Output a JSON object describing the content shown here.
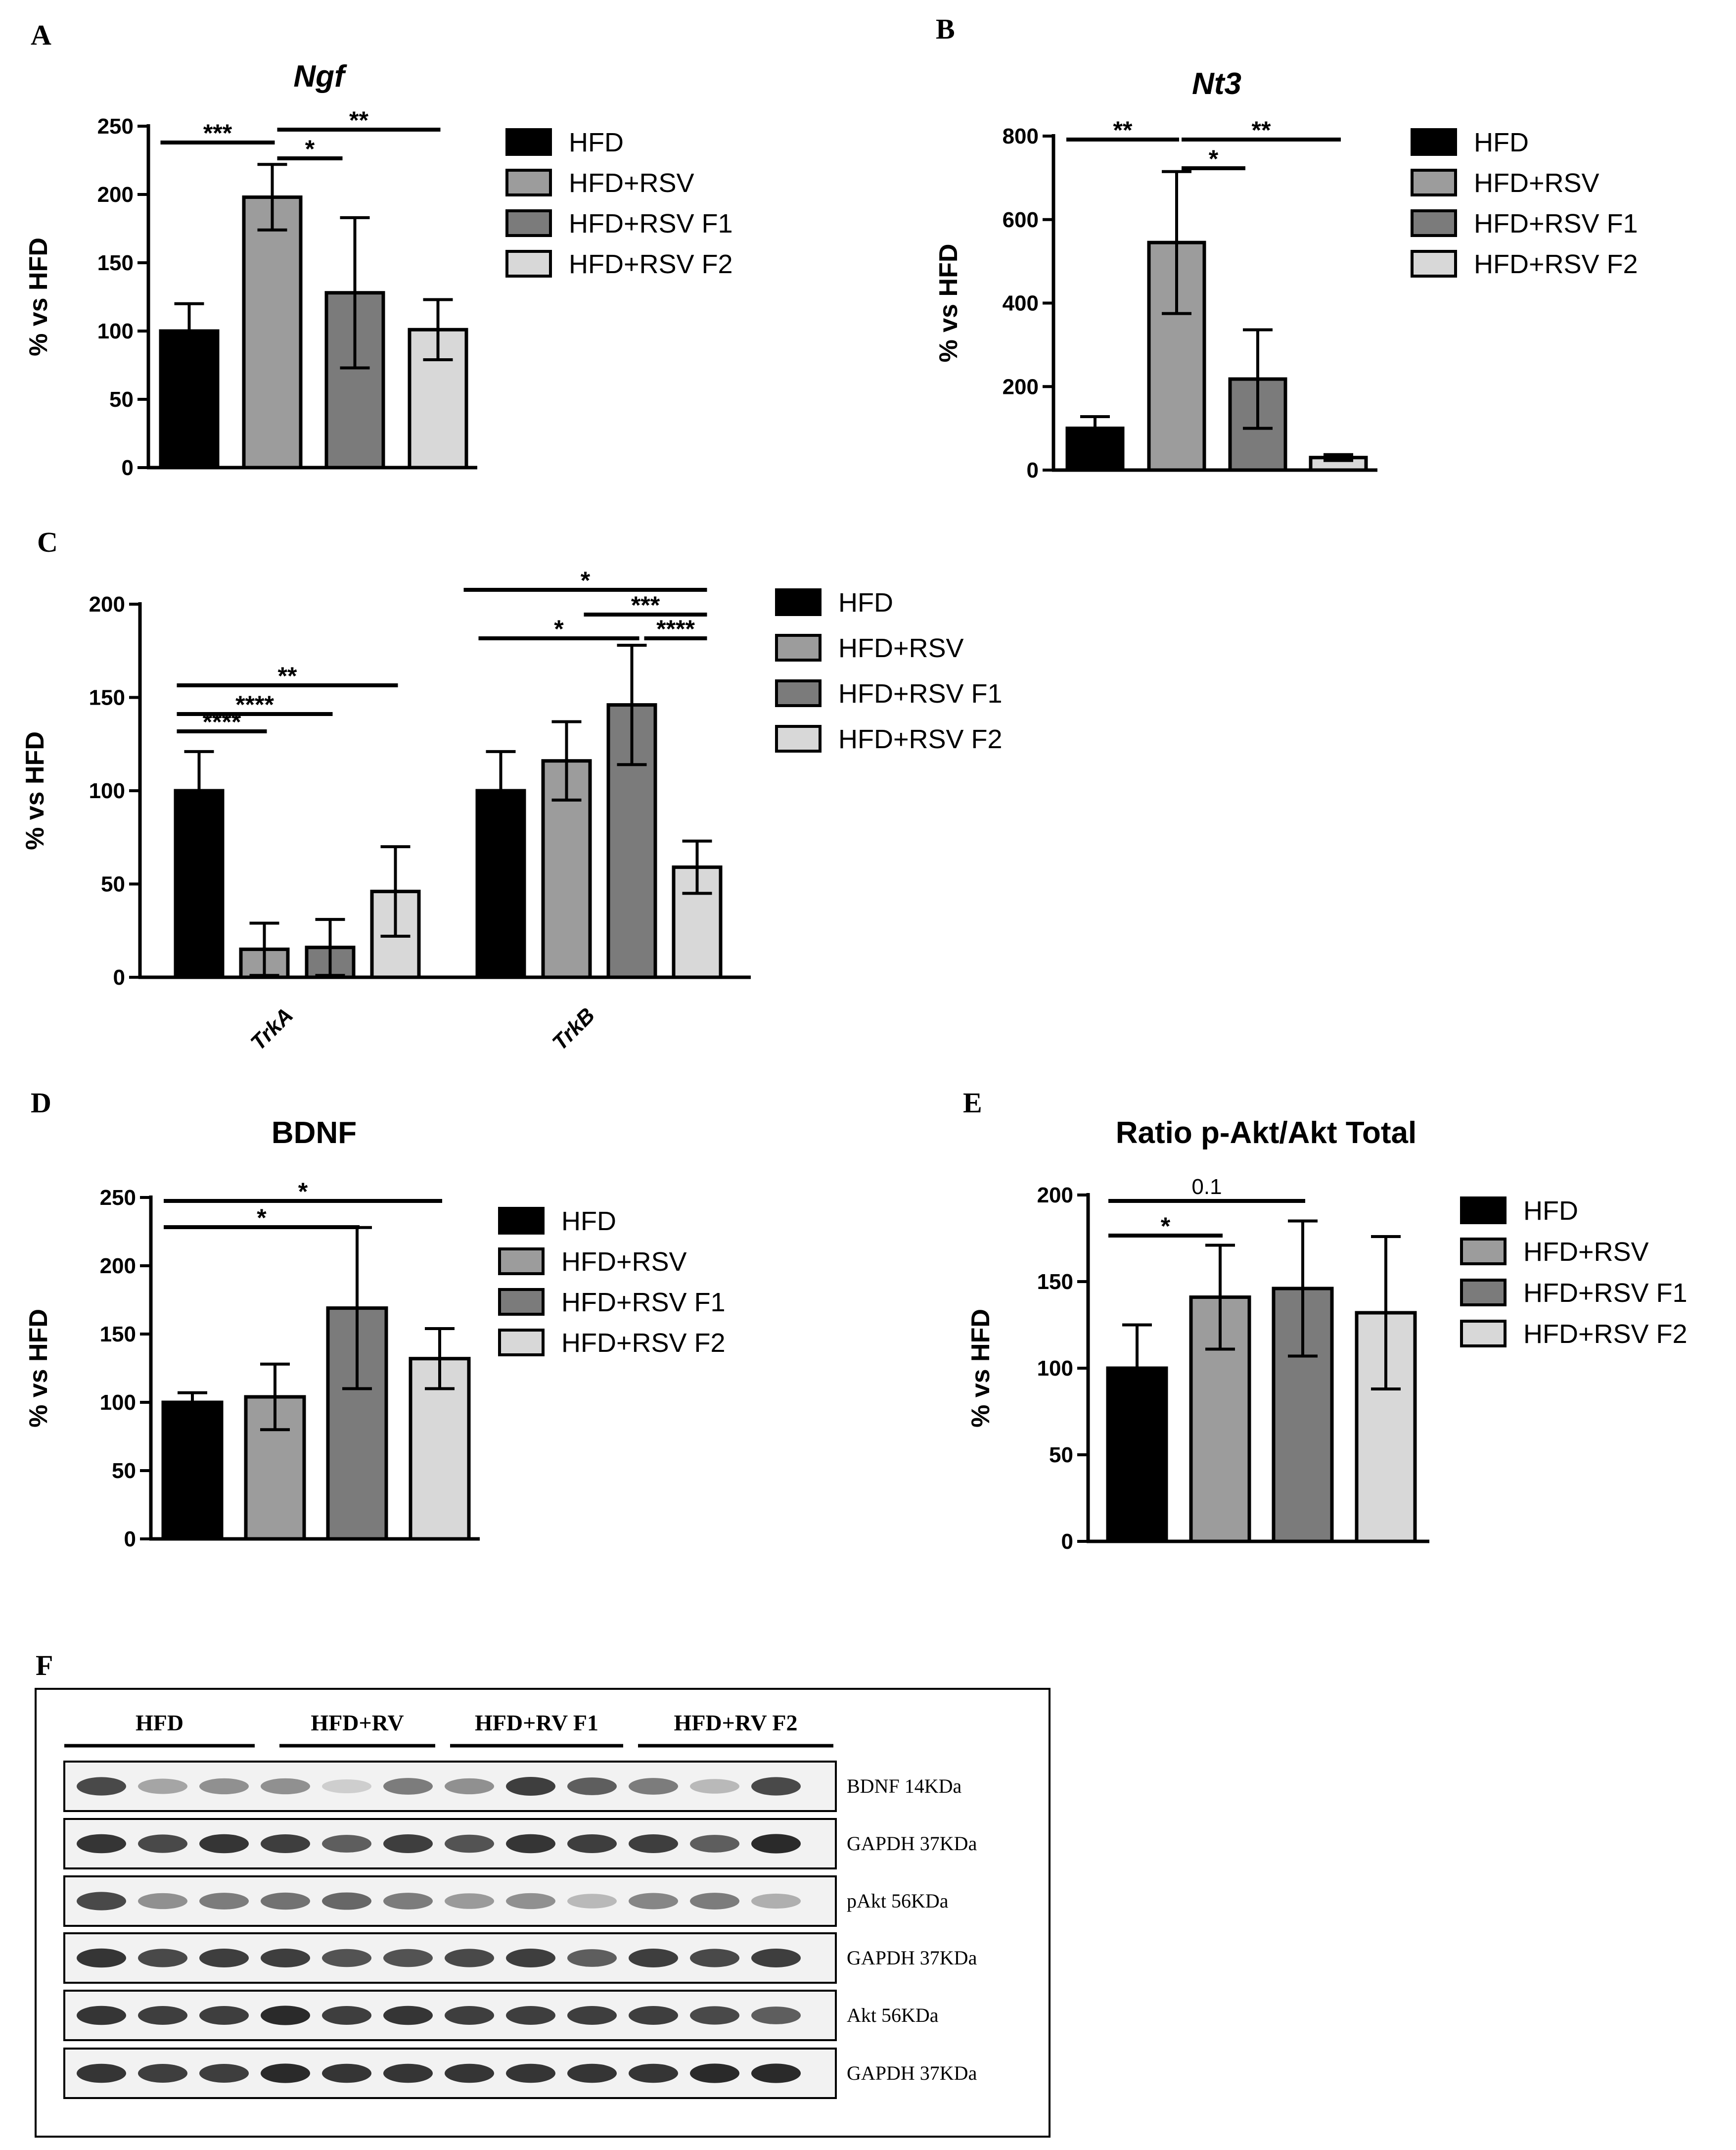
{
  "colors": {
    "HFD": "#000000",
    "HFD+RSV": "#9c9c9c",
    "HFD+RSV F1": "#7b7b7b",
    "HFD+RSV F2": "#d8d8d8"
  },
  "legend": [
    "HFD",
    "HFD+RSV",
    "HFD+RSV F1",
    "HFD+RSV F2"
  ],
  "chart_data": [
    {
      "panel": "A",
      "type": "bar",
      "title": "Ngf",
      "title_italic": true,
      "ylabel": "% vs HFD",
      "ylim": [
        0,
        250
      ],
      "yticks": [
        0,
        50,
        100,
        150,
        200,
        250
      ],
      "categories": [
        "HFD",
        "HFD+RSV",
        "HFD+RSV F1",
        "HFD+RSV F2"
      ],
      "values": [
        100,
        198,
        128,
        101
      ],
      "errors": [
        20,
        24,
        55,
        22
      ],
      "significance": [
        {
          "from": 0,
          "to": 1,
          "label": "***"
        },
        {
          "from": 1,
          "to": 2,
          "label": "*"
        },
        {
          "from": 1,
          "to": 3,
          "label": "**"
        }
      ]
    },
    {
      "panel": "B",
      "type": "bar",
      "title": "Nt3",
      "title_italic": true,
      "ylabel": "% vs HFD",
      "ylim": [
        0,
        800
      ],
      "yticks": [
        0,
        200,
        400,
        600,
        800
      ],
      "categories": [
        "HFD",
        "HFD+RSV",
        "HFD+RSV F1",
        "HFD+RSV F2"
      ],
      "values": [
        100,
        545,
        218,
        30
      ],
      "errors": [
        28,
        170,
        118,
        7
      ],
      "significance": [
        {
          "from": 0,
          "to": 1,
          "label": "**"
        },
        {
          "from": 1,
          "to": 2,
          "label": "*"
        },
        {
          "from": 1,
          "to": 3,
          "label": "**"
        }
      ]
    },
    {
      "panel": "C",
      "type": "bar",
      "title": "",
      "ylabel": "% vs HFD",
      "ylim": [
        0,
        200
      ],
      "yticks": [
        0,
        50,
        100,
        150,
        200
      ],
      "categories": [
        "TrkA",
        "TrkB"
      ],
      "series": [
        {
          "name": "HFD",
          "values": [
            100,
            100
          ],
          "errors": [
            21,
            21
          ]
        },
        {
          "name": "HFD+RSV",
          "values": [
            15,
            116
          ],
          "errors": [
            14,
            21
          ]
        },
        {
          "name": "HFD+RSV F1",
          "values": [
            16,
            146
          ],
          "errors": [
            15,
            32
          ]
        },
        {
          "name": "HFD+RSV F2",
          "values": [
            46,
            59
          ],
          "errors": [
            24,
            14
          ]
        }
      ],
      "significance": [
        {
          "group": 0,
          "from": 0,
          "to": 1,
          "label": "****"
        },
        {
          "group": 0,
          "from": 0,
          "to": 2,
          "label": "****"
        },
        {
          "group": 0,
          "from": 0,
          "to": 3,
          "label": "**"
        },
        {
          "group": 1,
          "from": 0,
          "to": 2,
          "label": "*"
        },
        {
          "group": 1,
          "from": 2,
          "to": 3,
          "label": "****"
        },
        {
          "group": 1,
          "from": 1,
          "to": 3,
          "label": "***"
        },
        {
          "group": 1,
          "from": 0,
          "to": 3,
          "label": "*"
        }
      ]
    },
    {
      "panel": "D",
      "type": "bar",
      "title": "BDNF",
      "title_italic": false,
      "ylabel": "% vs HFD",
      "ylim": [
        0,
        250
      ],
      "yticks": [
        0,
        50,
        100,
        150,
        200,
        250
      ],
      "categories": [
        "HFD",
        "HFD+RSV",
        "HFD+RSV F1",
        "HFD+RSV F2"
      ],
      "values": [
        100,
        104,
        169,
        132
      ],
      "errors": [
        7,
        24,
        59,
        22
      ],
      "significance": [
        {
          "from": 0,
          "to": 2,
          "label": "*"
        },
        {
          "from": 0,
          "to": 3,
          "label": "*"
        }
      ]
    },
    {
      "panel": "E",
      "type": "bar",
      "title": "Ratio p-Akt/Akt Total",
      "title_italic": false,
      "ylabel": "% vs HFD",
      "ylim": [
        0,
        200
      ],
      "yticks": [
        0,
        50,
        100,
        150,
        200
      ],
      "categories": [
        "HFD",
        "HFD+RSV",
        "HFD+RSV F1",
        "HFD+RSV F2"
      ],
      "values": [
        100,
        141,
        146,
        132
      ],
      "errors": [
        25,
        30,
        39,
        44
      ],
      "significance": [
        {
          "from": 0,
          "to": 1,
          "label": "*"
        },
        {
          "from": 0,
          "to": 2,
          "label": "0.1"
        }
      ]
    }
  ],
  "blot": {
    "panel": "F",
    "groups": [
      "HFD",
      "HFD+RV",
      "HFD+RV F1",
      "HFD+RV F2"
    ],
    "rows": [
      {
        "label": "BDNF 14KDa",
        "intensity": [
          0.8,
          0.35,
          0.45,
          0.45,
          0.15,
          0.55,
          0.45,
          0.85,
          0.7,
          0.55,
          0.25,
          0.8
        ]
      },
      {
        "label": "GAPDH 37KDa",
        "intensity": [
          0.9,
          0.8,
          0.9,
          0.85,
          0.7,
          0.85,
          0.75,
          0.9,
          0.85,
          0.85,
          0.7,
          0.95
        ]
      },
      {
        "label": "pAkt 56KDa",
        "intensity": [
          0.8,
          0.45,
          0.55,
          0.6,
          0.65,
          0.55,
          0.4,
          0.45,
          0.25,
          0.5,
          0.55,
          0.3
        ]
      },
      {
        "label": "GAPDH 37KDa",
        "intensity": [
          0.9,
          0.8,
          0.85,
          0.85,
          0.75,
          0.75,
          0.8,
          0.85,
          0.7,
          0.85,
          0.8,
          0.85
        ]
      },
      {
        "label": "Akt 56KDa",
        "intensity": [
          0.9,
          0.85,
          0.85,
          0.95,
          0.85,
          0.9,
          0.85,
          0.85,
          0.85,
          0.85,
          0.8,
          0.7
        ]
      },
      {
        "label": "GAPDH 37KDa",
        "intensity": [
          0.9,
          0.85,
          0.85,
          0.95,
          0.9,
          0.9,
          0.9,
          0.9,
          0.9,
          0.9,
          0.95,
          0.95
        ]
      }
    ]
  }
}
